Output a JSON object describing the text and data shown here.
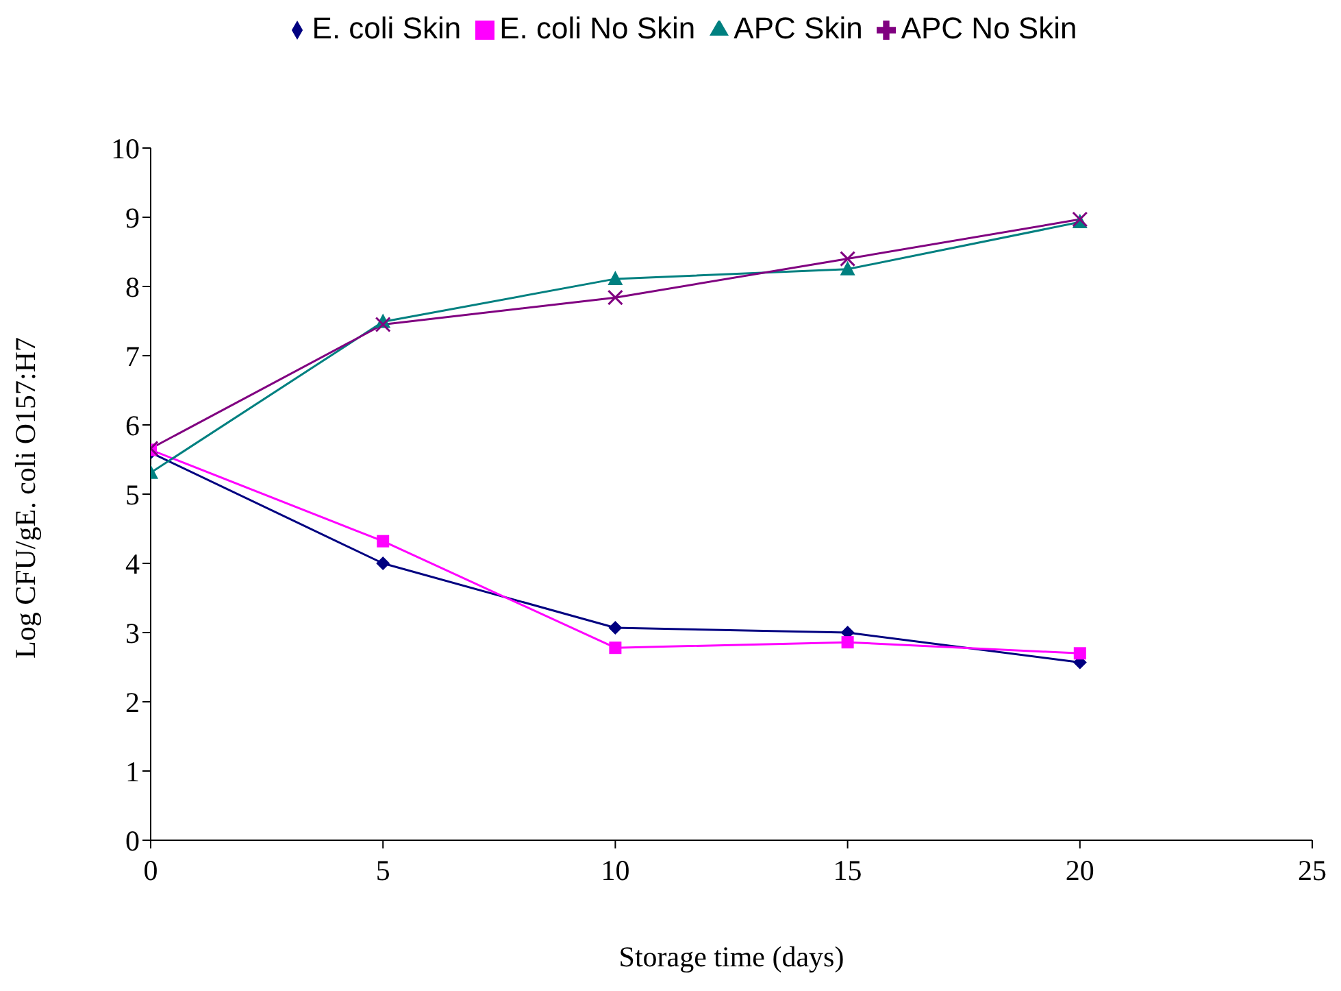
{
  "chart_data": {
    "type": "line",
    "xlabel": "Storage time (days)",
    "ylabel": "Log CFU/gE. coli O157:H7",
    "x": [
      0,
      5,
      10,
      15,
      20
    ],
    "xlim": [
      0,
      25
    ],
    "xticks": [
      0,
      5,
      10,
      15,
      20,
      25
    ],
    "ylim": [
      0,
      10
    ],
    "yticks": [
      0,
      1,
      2,
      3,
      4,
      5,
      6,
      7,
      8,
      9,
      10
    ],
    "grid": false,
    "legend": "top",
    "line_style": "solid",
    "series": [
      {
        "name": "E. coli Skin",
        "color": "#000080",
        "marker": "diamond",
        "values": [
          5.6,
          4.0,
          3.07,
          3.0,
          2.57
        ]
      },
      {
        "name": "E. coli No Skin",
        "color": "#ff00ff",
        "marker": "square",
        "values": [
          5.64,
          4.32,
          2.78,
          2.86,
          2.7
        ]
      },
      {
        "name": "APC Skin",
        "color": "#008080",
        "marker": "triangle",
        "values": [
          5.31,
          7.49,
          8.11,
          8.25,
          8.93
        ]
      },
      {
        "name": "APC No Skin",
        "color": "#800080",
        "marker": "cross",
        "values": [
          5.66,
          7.45,
          7.84,
          8.4,
          8.97
        ]
      }
    ]
  }
}
